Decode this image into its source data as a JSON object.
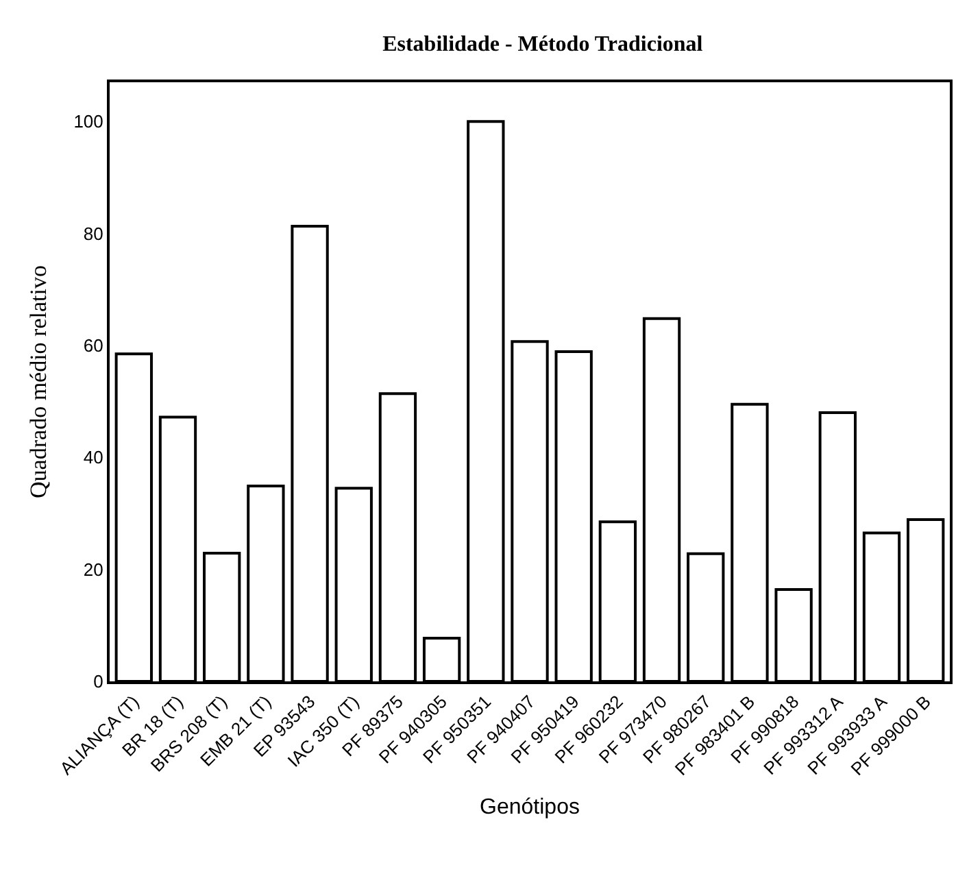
{
  "chart_data": {
    "type": "bar",
    "title": "Estabilidade - Método Tradicional",
    "xlabel": "Genótipos",
    "ylabel": "Quadrado médio relativo",
    "categories": [
      "ALIANÇA (T)",
      "BR 18 (T)",
      "BRS 208 (T)",
      "EMB 21 (T)",
      "EP 93543",
      "IAC 350 (T)",
      "PF 89375",
      "PF 940305",
      "PF 950351",
      "PF 940407",
      "PF 950419",
      "PF 960232",
      "PF 973470",
      "PF 980267",
      "PF 983401 B",
      "PF 990818",
      "PF 993312 A",
      "PF 993933 A",
      "PF 999000 B"
    ],
    "values": [
      58.5,
      47.2,
      22.9,
      34.9,
      81.3,
      34.5,
      51.4,
      7.7,
      100,
      60.7,
      58.9,
      28.5,
      64.8,
      22.8,
      49.5,
      16.4,
      48.0,
      26.5,
      28.9
    ],
    "color": "#ffffff",
    "ylim": [
      0,
      107
    ],
    "yticks": [
      0,
      20,
      40,
      60,
      80,
      100
    ]
  }
}
